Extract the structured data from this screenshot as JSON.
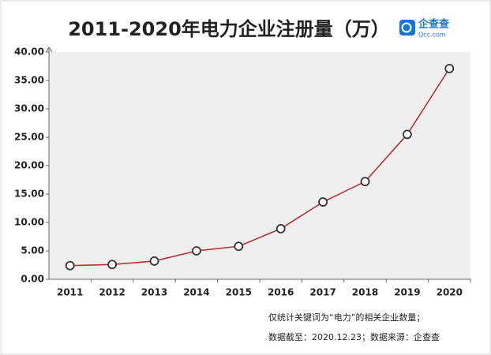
{
  "chart_data": {
    "type": "line",
    "title": "2011-2020年电力企业注册量（万）",
    "logo": {
      "name": "企查查",
      "url": "Qcc.com"
    },
    "categories": [
      "2011",
      "2012",
      "2013",
      "2014",
      "2015",
      "2016",
      "2017",
      "2018",
      "2019",
      "2020"
    ],
    "values": [
      2.4,
      2.6,
      3.2,
      5.0,
      5.8,
      8.9,
      13.6,
      17.2,
      25.5,
      37.1
    ],
    "color": "#b83232",
    "ylim": [
      0,
      40
    ],
    "yticks": [
      {
        "value": 0,
        "label": "0.00"
      },
      {
        "value": 5,
        "label": "5.00"
      },
      {
        "value": 10,
        "label": "10.00"
      },
      {
        "value": 15,
        "label": "15.00"
      },
      {
        "value": 20,
        "label": "20.00"
      },
      {
        "value": 25,
        "label": "25.00"
      },
      {
        "value": 30,
        "label": "30.00"
      },
      {
        "value": 35,
        "label": "35.00"
      },
      {
        "value": 40,
        "label": "40.00"
      }
    ],
    "grid": false,
    "notes": [
      "仅统计关键词为“电力”的相关企业数量；",
      "数据截至：2020.12.23；数据来源：企查查"
    ]
  }
}
